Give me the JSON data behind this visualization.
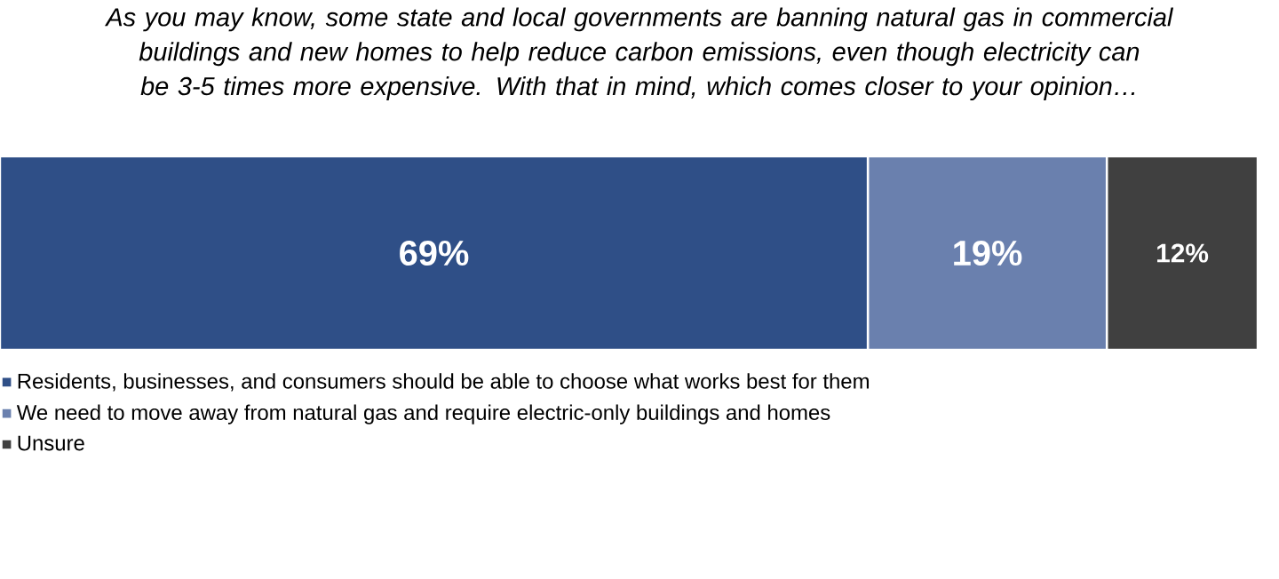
{
  "chart_data": {
    "type": "bar",
    "title": "As you may know, some state and local governments are banning natural gas in commercial buildings and new homes to help reduce carbon emissions, even though electricity can be 3-5 times more expensive. With that in mind, which comes closer to your opinion…",
    "categories": [
      null
    ],
    "stacked": true,
    "orientation": "horizontal",
    "legend": "bottom",
    "series": [
      {
        "name": "Residents, businesses, and consumers should be able to choose what works best for them",
        "color": "#2f4f87",
        "values": [
          69
        ],
        "value_labels": [
          "69%"
        ]
      },
      {
        "name": "We need to move away from natural gas and require electric-only buildings and homes",
        "color": "#6a80ae",
        "values": [
          19
        ],
        "value_labels": [
          "19%"
        ]
      },
      {
        "name": "Unsure",
        "color": "#404040",
        "values": [
          12
        ],
        "value_labels": [
          "12%"
        ]
      }
    ]
  }
}
